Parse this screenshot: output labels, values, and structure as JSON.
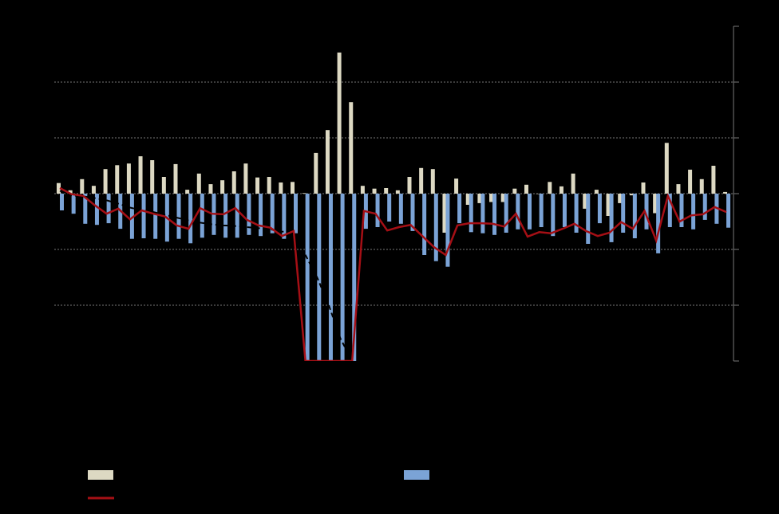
{
  "chart_data": {
    "type": "bar",
    "ylim": [
      -3,
      3
    ],
    "yticks": [
      -2,
      -1,
      0,
      1,
      2
    ],
    "grid": true,
    "series": [
      {
        "type": "bar",
        "color": "#ddd9c3",
        "values": [
          0.19,
          0.06,
          0.26,
          0.14,
          0.44,
          0.51,
          0.54,
          0.67,
          0.6,
          0.3,
          0.53,
          0.07,
          0.36,
          0.17,
          0.24,
          0.4,
          0.54,
          0.29,
          0.3,
          0.2,
          0.21,
          0.01,
          0.73,
          1.14,
          2.53,
          1.64,
          0.14,
          0.09,
          0.1,
          0.06,
          0.3,
          0.46,
          0.44,
          -0.7,
          0.27,
          -0.2,
          -0.17,
          -0.15,
          -0.15,
          0.09,
          0.16,
          0,
          0.21,
          0.13,
          0.36,
          -0.27,
          0.07,
          -0.4,
          -0.17,
          -0.03,
          0.2,
          -0.35,
          0.91,
          0.17,
          0.43,
          0.26,
          0.5,
          0.03
        ]
      },
      {
        "type": "bar",
        "color": "#7ba3d6",
        "values": [
          -0.3,
          -0.36,
          -0.54,
          -0.56,
          -0.53,
          -0.63,
          -0.81,
          -0.8,
          -0.81,
          -0.86,
          -0.81,
          -0.89,
          -0.79,
          -0.74,
          -0.79,
          -0.79,
          -0.74,
          -0.76,
          -0.71,
          -0.81,
          -0.71,
          -3,
          -3,
          -3,
          -3,
          -3,
          -0.63,
          -0.6,
          -0.5,
          -0.54,
          -0.67,
          -1.1,
          -1.21,
          -1.31,
          -0.53,
          -0.69,
          -0.71,
          -0.74,
          -0.7,
          -0.64,
          -0.64,
          -0.6,
          -0.76,
          -0.6,
          -0.7,
          -0.9,
          -0.53,
          -0.87,
          -0.7,
          -0.8,
          -0.64,
          -1.07,
          -0.6,
          -0.6,
          -0.64,
          -0.47,
          -0.54,
          -0.61
        ]
      },
      {
        "type": "line",
        "color": "#000000",
        "dash": true,
        "values": [
          0.05,
          -0.03,
          -0.05,
          -0.08,
          -0.12,
          -0.18,
          -0.25,
          -0.3,
          -0.33,
          -0.38,
          -0.43,
          -0.48,
          -0.52,
          -0.55,
          -0.57,
          -0.58,
          -0.6,
          -0.62,
          -0.64,
          -0.68,
          -0.7,
          -1.1,
          -1.5,
          -2.0,
          -2.6,
          -3,
          null,
          null,
          null,
          null,
          null,
          null,
          null,
          null,
          null,
          null,
          null,
          null,
          null,
          null,
          null,
          null,
          null,
          null,
          null,
          null,
          null,
          null,
          null,
          null,
          null,
          null,
          null,
          null,
          null,
          null,
          null,
          null
        ]
      },
      {
        "type": "line",
        "color": "#a50f15",
        "values": [
          0.1,
          -0.01,
          -0.04,
          -0.21,
          -0.36,
          -0.27,
          -0.46,
          -0.3,
          -0.36,
          -0.41,
          -0.57,
          -0.63,
          -0.26,
          -0.36,
          -0.37,
          -0.26,
          -0.47,
          -0.57,
          -0.61,
          -0.76,
          -0.67,
          -3,
          -3,
          -3,
          -3,
          -3,
          -0.31,
          -0.36,
          -0.66,
          -0.6,
          -0.56,
          -0.76,
          -0.96,
          -1.1,
          -0.57,
          -0.53,
          -0.53,
          -0.54,
          -0.59,
          -0.36,
          -0.77,
          -0.69,
          -0.71,
          -0.63,
          -0.54,
          -0.67,
          -0.76,
          -0.7,
          -0.51,
          -0.63,
          -0.31,
          -0.84,
          -0.04,
          -0.5,
          -0.39,
          -0.37,
          -0.24,
          -0.33
        ]
      }
    ]
  }
}
